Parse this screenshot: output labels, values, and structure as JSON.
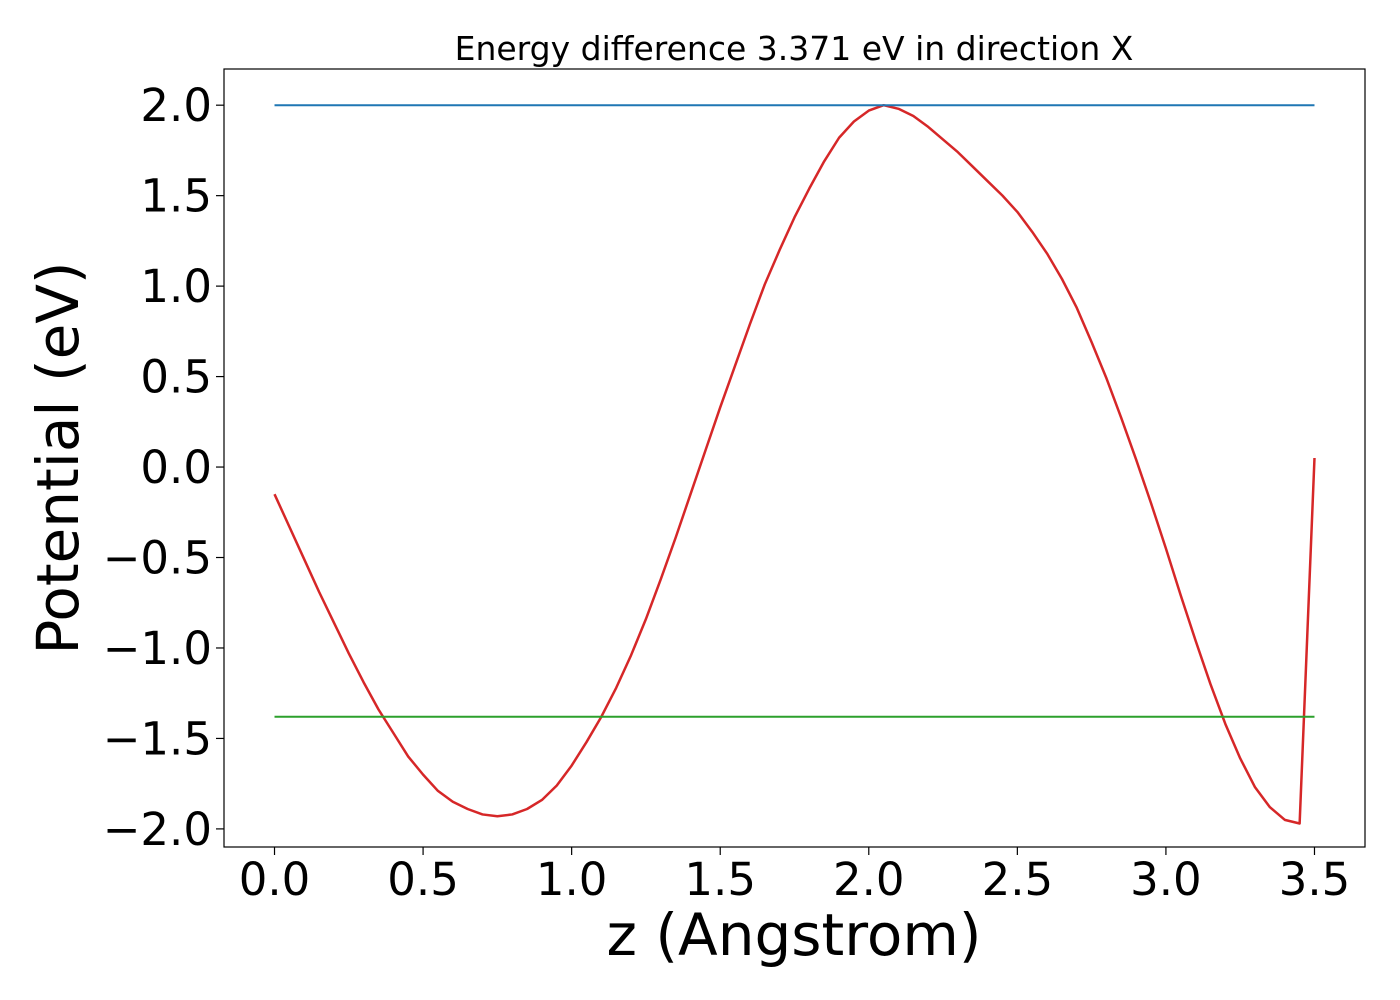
{
  "chart_data": {
    "type": "line",
    "title": "Energy difference 3.371 eV in direction X",
    "xlabel": "z (Angstrom)",
    "ylabel": "Potential (eV)",
    "xlim": [
      -0.17,
      3.67
    ],
    "ylim": [
      -2.1,
      2.2
    ],
    "grid": false,
    "xticks": [
      0.0,
      0.5,
      1.0,
      1.5,
      2.0,
      2.5,
      3.0,
      3.5
    ],
    "xtick_labels": [
      "0.0",
      "0.5",
      "1.0",
      "1.5",
      "2.0",
      "2.5",
      "3.0",
      "3.5"
    ],
    "yticks": [
      -2.0,
      -1.5,
      -1.0,
      -0.5,
      0.0,
      0.5,
      1.0,
      1.5,
      2.0
    ],
    "ytick_labels": [
      "−2.0",
      "−1.5",
      "−1.0",
      "−0.5",
      "0.0",
      "0.5",
      "1.0",
      "1.5",
      "2.0"
    ],
    "series": [
      {
        "role": "potential",
        "color": "#d62728",
        "x": [
          0.0,
          0.05,
          0.1,
          0.15,
          0.2,
          0.25,
          0.3,
          0.35,
          0.4,
          0.45,
          0.5,
          0.55,
          0.6,
          0.65,
          0.7,
          0.75,
          0.8,
          0.85,
          0.9,
          0.95,
          1.0,
          1.05,
          1.1,
          1.15,
          1.2,
          1.25,
          1.3,
          1.35,
          1.4,
          1.45,
          1.5,
          1.55,
          1.6,
          1.65,
          1.7,
          1.75,
          1.8,
          1.85,
          1.9,
          1.95,
          2.0,
          2.05,
          2.1,
          2.15,
          2.2,
          2.25,
          2.3,
          2.35,
          2.4,
          2.45,
          2.5,
          2.55,
          2.6,
          2.65,
          2.7,
          2.75,
          2.8,
          2.85,
          2.9,
          2.95,
          3.0,
          3.05,
          3.1,
          3.15,
          3.2,
          3.25,
          3.3,
          3.35,
          3.4,
          3.45,
          3.5
        ],
        "y": [
          -0.15,
          -0.33,
          -0.51,
          -0.69,
          -0.86,
          -1.03,
          -1.19,
          -1.34,
          -1.47,
          -1.6,
          -1.7,
          -1.79,
          -1.85,
          -1.89,
          -1.92,
          -1.93,
          -1.92,
          -1.89,
          -1.84,
          -1.76,
          -1.65,
          -1.52,
          -1.38,
          -1.22,
          -1.04,
          -0.84,
          -0.62,
          -0.39,
          -0.15,
          0.09,
          0.33,
          0.56,
          0.79,
          1.01,
          1.2,
          1.38,
          1.54,
          1.69,
          1.82,
          1.91,
          1.97,
          2.0,
          1.98,
          1.94,
          1.88,
          1.81,
          1.74,
          1.66,
          1.58,
          1.5,
          1.41,
          1.3,
          1.18,
          1.04,
          0.88,
          0.69,
          0.49,
          0.27,
          0.04,
          -0.2,
          -0.45,
          -0.71,
          -0.96,
          -1.2,
          -1.42,
          -1.61,
          -1.77,
          -1.88,
          -1.95,
          -1.97,
          0.05
        ]
      },
      {
        "role": "max-level",
        "color": "#1f77b4",
        "x": [
          0.0,
          3.5
        ],
        "y": [
          2.0,
          2.0
        ]
      },
      {
        "role": "min-level",
        "color": "#2ca02c",
        "x": [
          0.0,
          3.5
        ],
        "y": [
          -1.38,
          -1.38
        ]
      }
    ]
  }
}
